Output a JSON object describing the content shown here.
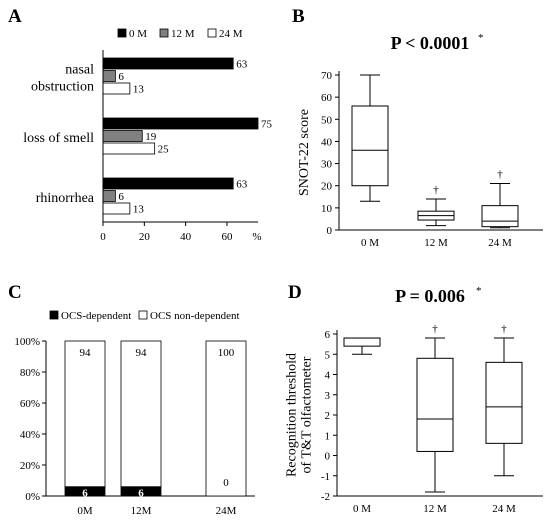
{
  "chart_data": [
    {
      "panel": "A",
      "type": "bar",
      "orientation": "horizontal",
      "categories": [
        "nasal\nobstruction",
        "loss of smell",
        "rhinorrhea"
      ],
      "series": [
        {
          "name": "0 M",
          "values": [
            63,
            75,
            63
          ],
          "color": "#000000"
        },
        {
          "name": "12 M",
          "values": [
            6,
            19,
            6
          ],
          "color": "#808080"
        },
        {
          "name": "24 M",
          "values": [
            13,
            25,
            13
          ],
          "color": "#ffffff"
        }
      ],
      "xlim": [
        0,
        75
      ],
      "xticks": [
        0,
        20,
        40,
        60
      ],
      "xunit": "%",
      "legend": "top"
    },
    {
      "panel": "B",
      "type": "box",
      "title": "P < 0.0001",
      "title_marker": "*",
      "ylabel": "SNOT-22 score",
      "ylim": [
        0,
        70
      ],
      "yticks": [
        0,
        10,
        20,
        30,
        40,
        50,
        60,
        70
      ],
      "categories": [
        "0 M",
        "12 M",
        "24 M"
      ],
      "boxes": [
        {
          "min": 13,
          "q1": 20,
          "median": 36,
          "q3": 56,
          "max": 70,
          "mark": ""
        },
        {
          "min": 2,
          "q1": 4.5,
          "median": 6.5,
          "q3": 8.5,
          "max": 14,
          "mark": "†"
        },
        {
          "min": 1,
          "q1": 1.5,
          "median": 4,
          "q3": 11,
          "max": 21,
          "mark": "†"
        }
      ]
    },
    {
      "panel": "C",
      "type": "bar",
      "stacked": true,
      "categories": [
        "0M",
        "12M",
        "24M"
      ],
      "series": [
        {
          "name": "OCS-dependent",
          "values": [
            6,
            6,
            0
          ],
          "color": "#000000"
        },
        {
          "name": "OCS non-dependent",
          "values": [
            94,
            94,
            100
          ],
          "color": "#ffffff"
        }
      ],
      "ylim": [
        0,
        100
      ],
      "yticks": [
        "0%",
        "20%",
        "40%",
        "60%",
        "80%",
        "100%"
      ],
      "legend": "top"
    },
    {
      "panel": "D",
      "type": "box",
      "title": "P = 0.006",
      "title_marker": "*",
      "ylabel": "Recognition threshold of T&T olfactometer",
      "ylabel_lines": [
        "Recognition threshold",
        "of T&T olfactometer"
      ],
      "ylim": [
        -2,
        6
      ],
      "yticks": [
        -2,
        -1,
        0,
        1,
        2,
        3,
        4,
        5,
        6
      ],
      "categories": [
        "0 M",
        "12 M",
        "24 M"
      ],
      "boxes": [
        {
          "min": 5,
          "q1": 5.4,
          "median": 5.8,
          "q3": 5.8,
          "max": 5.8,
          "mark": ""
        },
        {
          "min": -1.8,
          "q1": 0.2,
          "median": 1.8,
          "q3": 4.8,
          "max": 5.8,
          "mark": "†"
        },
        {
          "min": -1,
          "q1": 0.6,
          "median": 2.4,
          "q3": 4.6,
          "max": 5.8,
          "mark": "†"
        }
      ]
    }
  ]
}
